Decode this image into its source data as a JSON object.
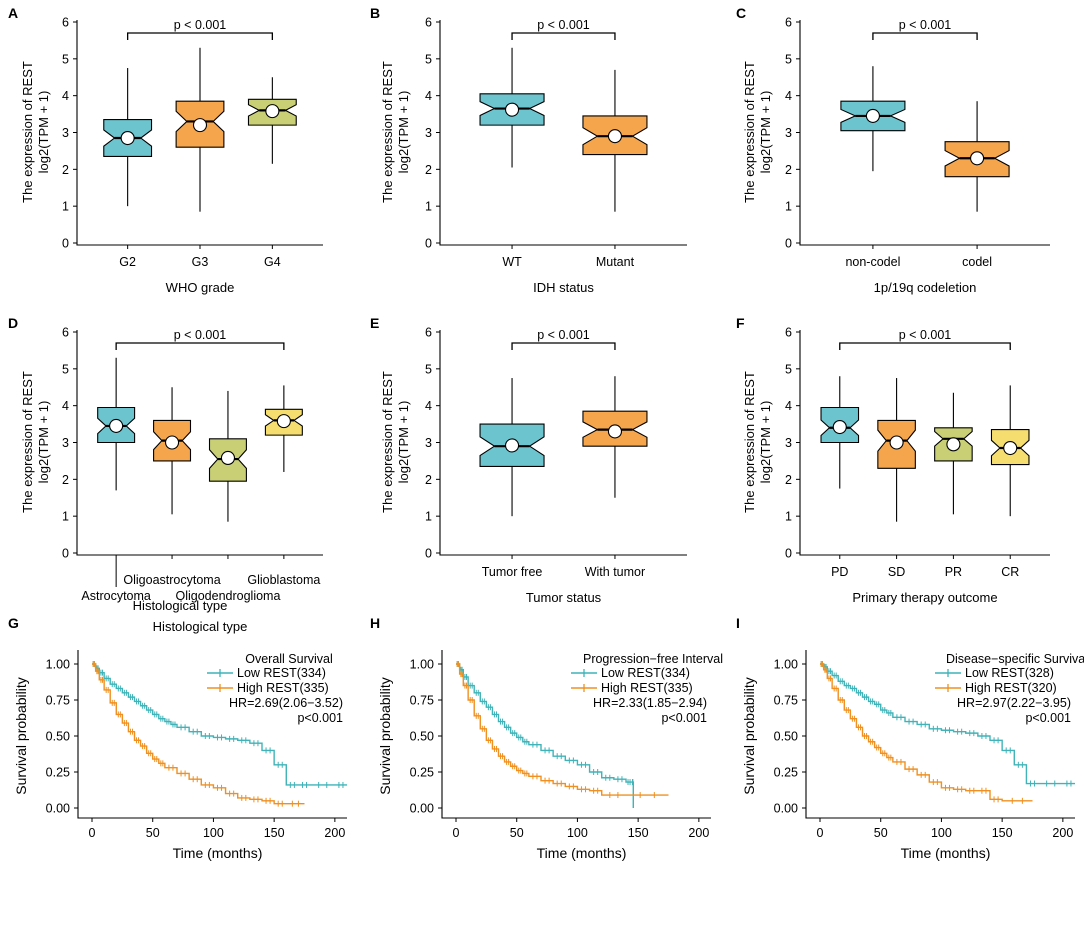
{
  "colors": {
    "blue": "#6cc4ce",
    "orange": "#f5a54b",
    "olive": "#c8cf74",
    "yellow": "#f5de6f",
    "km_low": "#3fb3b8",
    "km_high": "#ef9020"
  },
  "chart_data": [
    {
      "panel": "A",
      "type": "box",
      "ylabel_line1": "The expression of REST",
      "ylabel_line2": "log2(TPM + 1)",
      "yticks": [
        0,
        1,
        2,
        3,
        4,
        5,
        6
      ],
      "ylim": [
        0,
        6
      ],
      "xlabel": "WHO grade",
      "pvalue": "p < 0.001",
      "bracket": [
        1,
        3
      ],
      "groups": [
        {
          "name": "G2",
          "color": "blue",
          "min": 1.0,
          "q1": 2.35,
          "median": 2.85,
          "q3": 3.35,
          "max": 4.75,
          "mean": 2.85
        },
        {
          "name": "G3",
          "color": "orange",
          "min": 0.85,
          "q1": 2.6,
          "median": 3.3,
          "q3": 3.85,
          "max": 5.3,
          "mean": 3.2
        },
        {
          "name": "G4",
          "color": "olive",
          "min": 2.15,
          "q1": 3.2,
          "median": 3.6,
          "q3": 3.9,
          "max": 4.5,
          "mean": 3.58
        }
      ]
    },
    {
      "panel": "B",
      "type": "box",
      "ylabel_line1": "The expression of REST",
      "ylabel_line2": "log2(TPM + 1)",
      "yticks": [
        0,
        1,
        2,
        3,
        4,
        5,
        6
      ],
      "ylim": [
        0,
        6
      ],
      "xlabel": "IDH status",
      "pvalue": "p < 0.001",
      "bracket": [
        1,
        2
      ],
      "groups": [
        {
          "name": "WT",
          "color": "blue",
          "min": 2.05,
          "q1": 3.2,
          "median": 3.65,
          "q3": 4.05,
          "max": 5.3,
          "mean": 3.62
        },
        {
          "name": "Mutant",
          "color": "orange",
          "min": 0.85,
          "q1": 2.4,
          "median": 2.9,
          "q3": 3.45,
          "max": 4.7,
          "mean": 2.9
        }
      ]
    },
    {
      "panel": "C",
      "type": "box",
      "ylabel_line1": "The expression of REST",
      "ylabel_line2": "log2(TPM + 1)",
      "yticks": [
        0,
        1,
        2,
        3,
        4,
        5,
        6
      ],
      "ylim": [
        0,
        6
      ],
      "xlabel": "1p/19q codeletion",
      "pvalue": "p < 0.001",
      "bracket": [
        1,
        2
      ],
      "groups": [
        {
          "name": "non-codel",
          "color": "blue",
          "min": 1.95,
          "q1": 3.05,
          "median": 3.45,
          "q3": 3.85,
          "max": 4.8,
          "mean": 3.45
        },
        {
          "name": "codel",
          "color": "orange",
          "min": 0.85,
          "q1": 1.8,
          "median": 2.3,
          "q3": 2.75,
          "max": 3.85,
          "mean": 2.3
        }
      ]
    },
    {
      "panel": "D",
      "type": "box",
      "ylabel_line1": "The expression of REST",
      "ylabel_line2": "log2(TPM + 1)",
      "yticks": [
        0,
        1,
        2,
        3,
        4,
        5,
        6
      ],
      "ylim": [
        0,
        6
      ],
      "xlabel": "Histological type",
      "pvalue": "p < 0.001",
      "bracket": [
        1,
        4
      ],
      "stagger_ticks": true,
      "groups": [
        {
          "name": "Astrocytoma",
          "color": "blue",
          "min": 1.7,
          "q1": 3.0,
          "median": 3.45,
          "q3": 3.95,
          "max": 5.3,
          "mean": 3.45
        },
        {
          "name": "Oligoastrocytoma",
          "color": "orange",
          "min": 1.05,
          "q1": 2.5,
          "median": 3.05,
          "q3": 3.6,
          "max": 4.5,
          "mean": 3.0
        },
        {
          "name": "Oligodendroglioma",
          "color": "olive",
          "min": 0.85,
          "q1": 1.95,
          "median": 2.55,
          "q3": 3.1,
          "max": 4.4,
          "mean": 2.58
        },
        {
          "name": "Glioblastoma",
          "color": "yellow",
          "min": 2.2,
          "q1": 3.2,
          "median": 3.6,
          "q3": 3.9,
          "max": 4.55,
          "mean": 3.58
        }
      ]
    },
    {
      "panel": "E",
      "type": "box",
      "ylabel_line1": "The expression of REST",
      "ylabel_line2": "log2(TPM + 1)",
      "yticks": [
        0,
        1,
        2,
        3,
        4,
        5,
        6
      ],
      "ylim": [
        0,
        6
      ],
      "xlabel": "Tumor status",
      "pvalue": "p < 0.001",
      "bracket": [
        1,
        2
      ],
      "groups": [
        {
          "name": "Tumor free",
          "color": "blue",
          "min": 1.0,
          "q1": 2.35,
          "median": 2.9,
          "q3": 3.5,
          "max": 4.75,
          "mean": 2.92
        },
        {
          "name": "With tumor",
          "color": "orange",
          "min": 1.5,
          "q1": 2.9,
          "median": 3.35,
          "q3": 3.85,
          "max": 4.8,
          "mean": 3.3
        }
      ]
    },
    {
      "panel": "F",
      "type": "box",
      "ylabel_line1": "The expression of REST",
      "ylabel_line2": "log2(TPM + 1)",
      "yticks": [
        0,
        1,
        2,
        3,
        4,
        5,
        6
      ],
      "ylim": [
        0,
        6
      ],
      "xlabel": "Primary therapy outcome",
      "pvalue": "p < 0.001",
      "bracket": [
        1,
        4
      ],
      "groups": [
        {
          "name": "PD",
          "color": "blue",
          "min": 1.75,
          "q1": 3.0,
          "median": 3.4,
          "q3": 3.95,
          "max": 4.8,
          "mean": 3.42
        },
        {
          "name": "SD",
          "color": "orange",
          "min": 0.85,
          "q1": 2.3,
          "median": 3.05,
          "q3": 3.6,
          "max": 4.75,
          "mean": 3.0
        },
        {
          "name": "PR",
          "color": "olive",
          "min": 1.05,
          "q1": 2.5,
          "median": 3.1,
          "q3": 3.4,
          "max": 4.35,
          "mean": 2.95
        },
        {
          "name": "CR",
          "color": "yellow",
          "min": 1.0,
          "q1": 2.4,
          "median": 2.85,
          "q3": 3.35,
          "max": 4.55,
          "mean": 2.85
        }
      ]
    },
    {
      "panel": "G",
      "type": "line",
      "subtype": "kaplan-meier",
      "title": "Overall Survival",
      "ylabel": "Survival probability",
      "xlabel": "Time (months)",
      "xticks": [
        0,
        50,
        100,
        150,
        200
      ],
      "xlim": [
        0,
        210
      ],
      "yticks": [
        "0.00",
        "0.25",
        "0.50",
        "0.75",
        "1.00"
      ],
      "ylim": [
        0,
        1
      ],
      "legend": [
        "Low REST(334)",
        "High REST(335)"
      ],
      "hr": "HR=2.69(2.06−3.52)",
      "p": "p<0.001",
      "series": [
        {
          "name": "Low REST(334)",
          "color": "km_low",
          "x": [
            0,
            3,
            6,
            10,
            15,
            20,
            25,
            30,
            35,
            40,
            45,
            50,
            55,
            60,
            65,
            70,
            80,
            90,
            100,
            110,
            120,
            130,
            140,
            150,
            160,
            170,
            180,
            200,
            210
          ],
          "y": [
            1.0,
            0.97,
            0.94,
            0.9,
            0.86,
            0.83,
            0.8,
            0.77,
            0.74,
            0.71,
            0.68,
            0.65,
            0.62,
            0.6,
            0.58,
            0.56,
            0.53,
            0.5,
            0.49,
            0.48,
            0.47,
            0.45,
            0.4,
            0.3,
            0.16,
            0.16,
            0.16,
            0.16,
            0.16
          ]
        },
        {
          "name": "High REST(335)",
          "color": "km_high",
          "x": [
            0,
            3,
            6,
            10,
            15,
            20,
            25,
            30,
            35,
            40,
            45,
            50,
            55,
            60,
            70,
            80,
            90,
            100,
            110,
            120,
            130,
            140,
            150,
            160,
            175
          ],
          "y": [
            1.0,
            0.95,
            0.89,
            0.82,
            0.73,
            0.65,
            0.59,
            0.53,
            0.47,
            0.43,
            0.38,
            0.34,
            0.31,
            0.28,
            0.24,
            0.2,
            0.16,
            0.14,
            0.1,
            0.07,
            0.06,
            0.05,
            0.03,
            0.03,
            0.03
          ]
        }
      ]
    },
    {
      "panel": "H",
      "type": "line",
      "subtype": "kaplan-meier",
      "title": "Progression−free Interval",
      "ylabel": "Survival probability",
      "xlabel": "Time (months)",
      "xticks": [
        0,
        50,
        100,
        150,
        200
      ],
      "xlim": [
        0,
        210
      ],
      "yticks": [
        "0.00",
        "0.25",
        "0.50",
        "0.75",
        "1.00"
      ],
      "ylim": [
        0,
        1
      ],
      "legend": [
        "Low REST(334)",
        "High REST(335)"
      ],
      "hr": "HR=2.33(1.85−2.94)",
      "p": "p<0.001",
      "series": [
        {
          "name": "Low REST(334)",
          "color": "km_low",
          "x": [
            0,
            3,
            6,
            10,
            15,
            20,
            25,
            30,
            35,
            40,
            45,
            50,
            55,
            60,
            70,
            80,
            90,
            100,
            110,
            120,
            130,
            140,
            145,
            146
          ],
          "y": [
            1.0,
            0.96,
            0.91,
            0.85,
            0.8,
            0.74,
            0.7,
            0.65,
            0.6,
            0.56,
            0.52,
            0.49,
            0.46,
            0.44,
            0.4,
            0.36,
            0.33,
            0.3,
            0.25,
            0.21,
            0.2,
            0.18,
            0.18,
            0.0
          ]
        },
        {
          "name": "High REST(335)",
          "color": "km_high",
          "x": [
            0,
            3,
            6,
            10,
            15,
            20,
            25,
            30,
            35,
            40,
            45,
            50,
            55,
            60,
            70,
            80,
            90,
            100,
            110,
            120,
            140,
            175
          ],
          "y": [
            1.0,
            0.93,
            0.85,
            0.75,
            0.64,
            0.55,
            0.47,
            0.41,
            0.36,
            0.32,
            0.29,
            0.26,
            0.24,
            0.22,
            0.19,
            0.17,
            0.15,
            0.13,
            0.12,
            0.09,
            0.09,
            0.09
          ]
        }
      ]
    },
    {
      "panel": "I",
      "type": "line",
      "subtype": "kaplan-meier",
      "title": "Disease−specific Survival",
      "ylabel": "Survival probability",
      "xlabel": "Time (months)",
      "xticks": [
        0,
        50,
        100,
        150,
        200
      ],
      "xlim": [
        0,
        210
      ],
      "yticks": [
        "0.00",
        "0.25",
        "0.50",
        "0.75",
        "1.00"
      ],
      "ylim": [
        0,
        1
      ],
      "legend": [
        "Low REST(328)",
        "High REST(320)"
      ],
      "hr": "HR=2.97(2.22−3.95)",
      "p": "p<0.001",
      "series": [
        {
          "name": "Low REST(328)",
          "color": "km_low",
          "x": [
            0,
            3,
            6,
            10,
            15,
            20,
            25,
            30,
            35,
            40,
            45,
            50,
            55,
            60,
            70,
            80,
            90,
            100,
            110,
            120,
            130,
            140,
            150,
            160,
            170,
            180,
            200,
            210
          ],
          "y": [
            1.0,
            0.98,
            0.95,
            0.92,
            0.88,
            0.85,
            0.83,
            0.8,
            0.77,
            0.74,
            0.72,
            0.68,
            0.66,
            0.63,
            0.6,
            0.58,
            0.55,
            0.54,
            0.53,
            0.52,
            0.5,
            0.47,
            0.4,
            0.3,
            0.17,
            0.17,
            0.17,
            0.17
          ]
        },
        {
          "name": "High REST(320)",
          "color": "km_high",
          "x": [
            0,
            3,
            6,
            10,
            15,
            20,
            25,
            30,
            35,
            40,
            45,
            50,
            55,
            60,
            70,
            80,
            90,
            100,
            110,
            120,
            130,
            140,
            150,
            175
          ],
          "y": [
            1.0,
            0.96,
            0.9,
            0.83,
            0.75,
            0.68,
            0.62,
            0.56,
            0.5,
            0.46,
            0.42,
            0.38,
            0.35,
            0.32,
            0.27,
            0.23,
            0.18,
            0.14,
            0.13,
            0.12,
            0.12,
            0.06,
            0.05,
            0.05
          ]
        }
      ]
    }
  ]
}
